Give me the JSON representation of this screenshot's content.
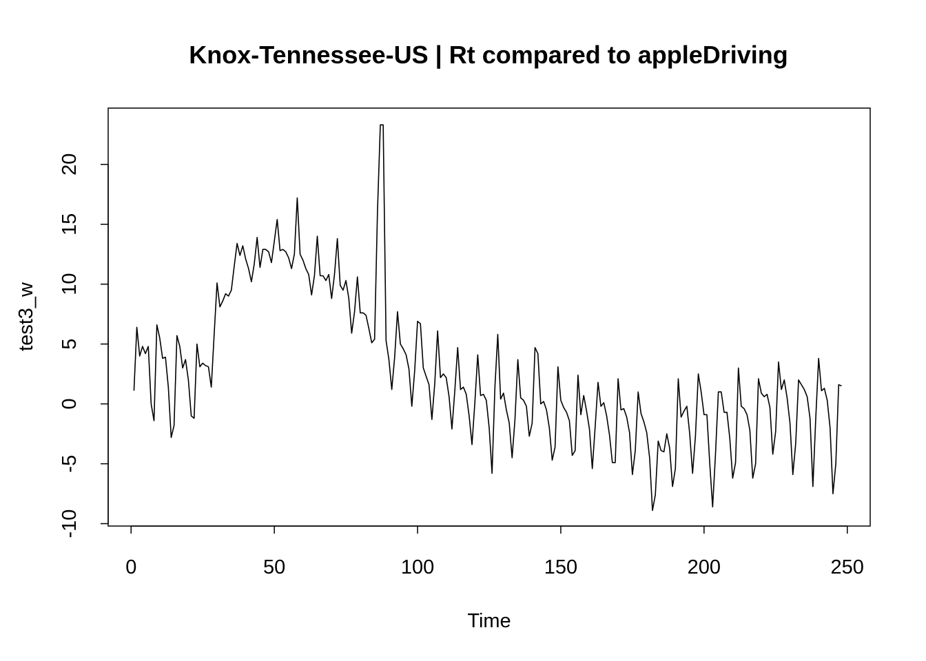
{
  "chart_data": {
    "type": "line",
    "title": "Knox-Tennessee-US | Rt compared to appleDriving",
    "xlabel": "Time",
    "ylabel": "test3_w",
    "xlim": [
      -8,
      258
    ],
    "ylim": [
      -10.2,
      24.7
    ],
    "x_ticks": [
      0,
      50,
      100,
      150,
      200,
      250
    ],
    "x_tick_labels": [
      "0",
      "50",
      "100",
      "150",
      "200",
      "250"
    ],
    "y_ticks": [
      -10,
      -5,
      0,
      5,
      10,
      15,
      20
    ],
    "y_tick_labels": [
      "-10",
      "-5",
      "0",
      "5",
      "10",
      "15",
      "20"
    ],
    "grid": false,
    "legend": "none",
    "line_color": "#000000",
    "x_start": 1,
    "series": [
      {
        "values": [
          1.1,
          6.4,
          4.0,
          4.8,
          4.2,
          4.8,
          0.0,
          -1.4,
          6.6,
          5.5,
          3.8,
          3.9,
          1.4,
          -2.8,
          -1.8,
          5.7,
          4.8,
          3.0,
          3.7,
          2.0,
          -1.0,
          -1.2,
          5.0,
          3.1,
          3.4,
          3.2,
          3.1,
          1.4,
          5.8,
          10.1,
          8.1,
          8.6,
          9.2,
          9.0,
          9.5,
          11.5,
          13.4,
          12.4,
          13.2,
          12.1,
          11.3,
          10.2,
          11.7,
          13.9,
          11.4,
          12.9,
          12.9,
          12.7,
          11.8,
          13.6,
          15.4,
          12.8,
          12.9,
          12.7,
          12.2,
          11.3,
          12.5,
          17.2,
          12.5,
          12.0,
          11.3,
          10.8,
          9.1,
          10.7,
          14.0,
          10.7,
          10.7,
          10.3,
          10.8,
          8.8,
          10.8,
          13.8,
          9.9,
          9.5,
          10.3,
          8.8,
          5.9,
          7.7,
          10.6,
          7.6,
          7.6,
          7.4,
          6.3,
          5.1,
          5.4,
          16.0,
          23.3,
          23.3,
          5.3,
          3.7,
          1.2,
          3.9,
          7.7,
          5.0,
          4.6,
          4.1,
          2.9,
          -0.2,
          2.8,
          6.9,
          6.7,
          3.0,
          2.3,
          1.6,
          -1.3,
          1.7,
          6.1,
          2.2,
          2.5,
          2.2,
          0.6,
          -2.1,
          1.1,
          4.7,
          1.2,
          1.4,
          0.8,
          -1.0,
          -3.4,
          0.1,
          4.1,
          0.7,
          0.8,
          0.3,
          -2.0,
          -5.8,
          1.4,
          5.8,
          0.4,
          0.9,
          -0.5,
          -1.6,
          -4.5,
          -1.3,
          3.7,
          0.5,
          0.3,
          -0.2,
          -2.7,
          -1.6,
          4.7,
          4.2,
          0.0,
          0.2,
          -0.5,
          -2.0,
          -4.7,
          -3.6,
          3.1,
          0.3,
          -0.3,
          -0.7,
          -1.4,
          -4.3,
          -3.9,
          2.4,
          -0.9,
          0.7,
          -0.6,
          -2.1,
          -5.4,
          -1.9,
          1.8,
          -0.2,
          0.1,
          -1.0,
          -2.6,
          -4.9,
          -4.9,
          2.1,
          -0.5,
          -0.4,
          -1.1,
          -2.4,
          -5.9,
          -3.9,
          1.0,
          -0.8,
          -1.5,
          -2.4,
          -4.5,
          -8.9,
          -7.6,
          -3.1,
          -3.9,
          -4.0,
          -2.5,
          -3.7,
          -6.9,
          -5.4,
          2.1,
          -1.1,
          -0.6,
          -0.2,
          -2.5,
          -5.8,
          -2.7,
          2.5,
          1.0,
          -0.9,
          -0.9,
          -5.0,
          -8.6,
          -4.2,
          1.0,
          1.0,
          -0.7,
          -0.7,
          -2.9,
          -6.2,
          -4.9,
          3.0,
          -0.2,
          -0.4,
          -0.9,
          -2.2,
          -6.2,
          -5.0,
          2.1,
          0.9,
          0.6,
          0.8,
          -0.3,
          -4.2,
          -2.3,
          3.5,
          1.2,
          2.0,
          0.5,
          -1.6,
          -5.9,
          -3.3,
          2.0,
          1.6,
          1.2,
          0.6,
          -1.2,
          -6.9,
          -1.2,
          3.8,
          1.1,
          1.3,
          0.3,
          -2.0,
          -7.5,
          -5.0,
          1.6,
          1.5
        ]
      }
    ]
  }
}
